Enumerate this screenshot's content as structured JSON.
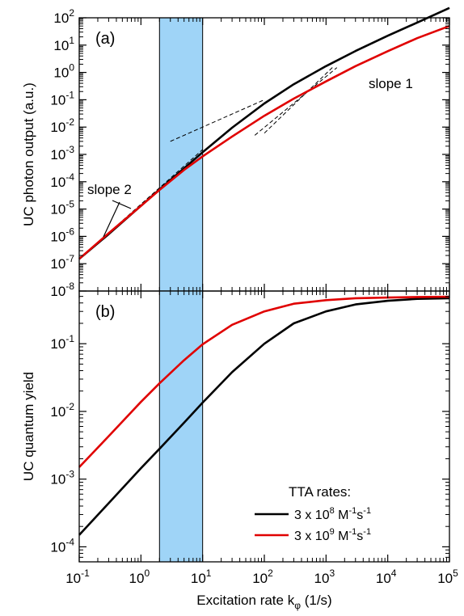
{
  "chart_data": [
    {
      "panel": "(a)",
      "type": "line",
      "xscale": "log",
      "yscale": "log",
      "xlim": [
        0.1,
        100000
      ],
      "ylim": [
        1e-08,
        100
      ],
      "ylabel": "UC photon output (a.u.)",
      "xtick_labels": [
        "10-1",
        "100",
        "101",
        "102",
        "103",
        "104",
        "105"
      ],
      "ytick_labels": [
        "10-8",
        "10-7",
        "10-6",
        "10-5",
        "10-4",
        "10-3",
        "10-2",
        "10-1",
        "100",
        "101",
        "102"
      ],
      "highlight_band": {
        "x": [
          2,
          10
        ],
        "color": "#9fd4f7"
      },
      "series": [
        {
          "name": "3 x 10^8 M^-1 s^-1",
          "color": "#000000",
          "x": [
            0.1,
            0.3,
            1,
            2,
            5,
            10,
            30,
            100,
            300,
            1000,
            3000,
            10000,
            30000,
            100000
          ],
          "y": [
            1.5e-07,
            1.2e-06,
            1.3e-05,
            5.2e-05,
            0.00031,
            0.0012,
            0.0095,
            0.073,
            0.37,
            1.7,
            6.1,
            22,
            67,
            230
          ]
        },
        {
          "name": "3 x 10^9 M^-1 s^-1",
          "color": "#e00000",
          "x": [
            0.1,
            0.3,
            1,
            2,
            5,
            10,
            30,
            100,
            300,
            1000,
            3000,
            10000,
            30000,
            100000
          ],
          "y": [
            1.5e-07,
            1.3e-06,
            1.3e-05,
            5e-05,
            0.00027,
            0.00085,
            0.0045,
            0.026,
            0.11,
            0.47,
            1.7,
            6.0,
            18,
            50
          ]
        }
      ],
      "guide_lines": [
        {
          "x": [
            0.1,
            10
          ],
          "y": [
            1.5e-07,
            0.0015
          ]
        },
        {
          "x": [
            3,
            100
          ],
          "y": [
            0.003,
            0.1
          ]
        },
        {
          "x": [
            100,
            1300
          ],
          "y": [
            0.006,
            1.6
          ]
        },
        {
          "x": [
            70,
            1500
          ],
          "y": [
            0.005,
            1.5
          ]
        }
      ],
      "annotations": [
        {
          "text": "slope 2"
        },
        {
          "text": "slope 1"
        }
      ]
    },
    {
      "panel": "(b)",
      "type": "line",
      "xscale": "log",
      "yscale": "log",
      "xlim": [
        0.1,
        100000
      ],
      "ylim": [
        6e-05,
        0.6
      ],
      "xlabel": "Excitation rate k",
      "xlabel_subscript": "φ",
      "xlabel_unit": " (1/s)",
      "ylabel": "UC quantum yield",
      "xtick_labels": [
        "10-1",
        "100",
        "101",
        "102",
        "103",
        "104",
        "105"
      ],
      "ytick_labels": [
        "10-4",
        "10-3",
        "10-2",
        "10-1"
      ],
      "highlight_band": {
        "x": [
          2,
          10
        ],
        "color": "#9fd4f7"
      },
      "series": [
        {
          "name": "3 x 10^8 M^-1 s^-1",
          "color": "#000000",
          "x": [
            0.1,
            0.3,
            1,
            2,
            5,
            10,
            30,
            100,
            300,
            1000,
            3000,
            10000,
            30000,
            100000
          ],
          "y": [
            0.00015,
            0.00044,
            0.00145,
            0.0028,
            0.0068,
            0.0135,
            0.038,
            0.1,
            0.2,
            0.3,
            0.38,
            0.43,
            0.46,
            0.47
          ]
        },
        {
          "name": "3 x 10^9 M^-1 s^-1",
          "color": "#e00000",
          "x": [
            0.1,
            0.3,
            1,
            2,
            5,
            10,
            30,
            100,
            300,
            1000,
            3000,
            10000,
            30000,
            100000
          ],
          "y": [
            0.0015,
            0.0043,
            0.0138,
            0.026,
            0.057,
            0.098,
            0.19,
            0.3,
            0.39,
            0.44,
            0.47,
            0.48,
            0.49,
            0.495
          ]
        }
      ],
      "legend": {
        "title": "TTA rates:",
        "position": "bottom-right",
        "entries": [
          {
            "prefix": "3 x 10",
            "exp": "8",
            "unit": " M",
            "unit_exp": "-1",
            "unit2": "s",
            "unit2_exp": "-1",
            "color": "#000000"
          },
          {
            "prefix": "3 x 10",
            "exp": "9",
            "unit": " M",
            "unit_exp": "-1",
            "unit2": "s",
            "unit2_exp": "-1",
            "color": "#e00000"
          }
        ]
      }
    }
  ]
}
